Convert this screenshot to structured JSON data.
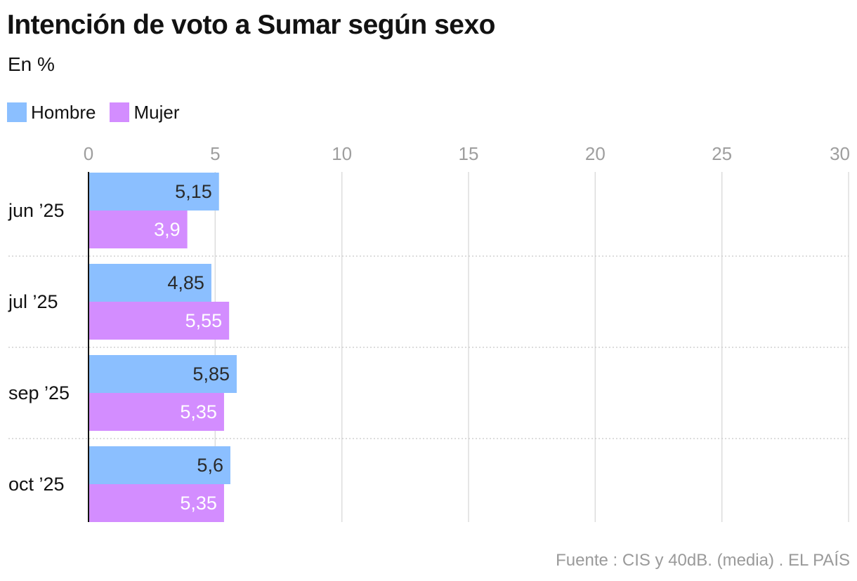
{
  "title": "Intención de voto a Sumar según sexo",
  "subtitle": "En %",
  "source": "Fuente : CIS y 40dB. (media) . EL PAÍS",
  "colors": {
    "hombre": "#8bbfff",
    "mujer": "#d38dff",
    "grid": "#dddddd",
    "axis_tick_text": "#9e9e9e",
    "label_dark": "#2a2a2a",
    "label_light": "#ffffff"
  },
  "chart_data": {
    "type": "bar",
    "orientation": "horizontal",
    "categories": [
      "jun ’25",
      "jul ’25",
      "sep ’25",
      "oct ’25"
    ],
    "series": [
      {
        "name": "Hombre",
        "values": [
          5.15,
          4.85,
          5.85,
          5.6
        ],
        "labels": [
          "5,15",
          "4,85",
          "5,85",
          "5,6"
        ]
      },
      {
        "name": "Mujer",
        "values": [
          3.9,
          5.55,
          5.35,
          5.35
        ],
        "labels": [
          "3,9",
          "5,55",
          "5,35",
          "5,35"
        ]
      }
    ],
    "xlim": [
      0,
      30
    ],
    "xticks": [
      0,
      5,
      10,
      15,
      20,
      25,
      30
    ],
    "xtick_labels": [
      "0",
      "5",
      "10",
      "15",
      "20",
      "25",
      "30"
    ],
    "grid": true,
    "legend_position": "top-left"
  }
}
